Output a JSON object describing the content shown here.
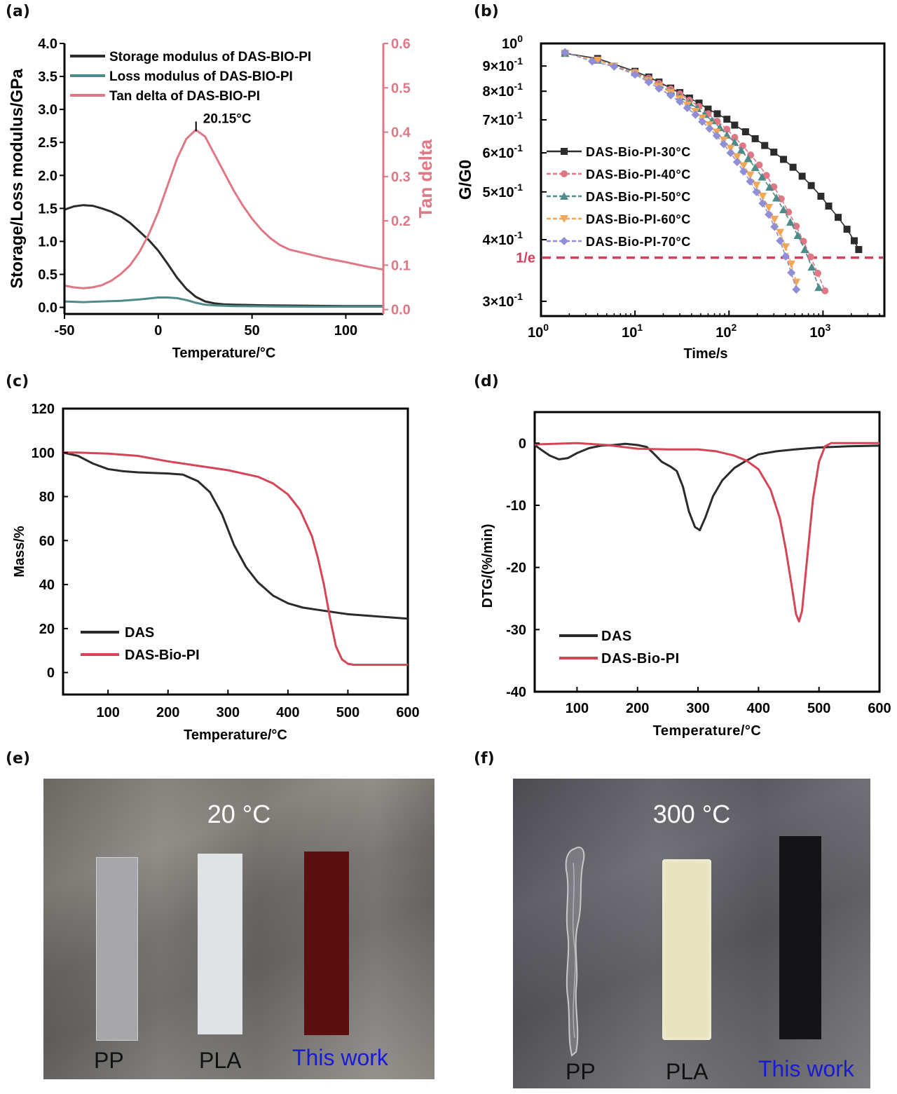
{
  "panels": {
    "a": {
      "label": "(a)"
    },
    "b": {
      "label": "(b)"
    },
    "c": {
      "label": "(c)"
    },
    "d": {
      "label": "(d)"
    },
    "e": {
      "label": "(e)"
    },
    "f": {
      "label": "(f)"
    }
  },
  "colors": {
    "black": "#2b2b2b",
    "teal": "#4f8a8b",
    "pink": "#e07785",
    "red": "#d64556",
    "orange": "#f0a858",
    "lavender": "#8f8fd8",
    "blue_text": "#1a1ad6"
  },
  "chart_data": [
    {
      "id": "a",
      "type": "line",
      "title": "",
      "xlabel": "Temperature/°C",
      "ylabel": "Storage/Loss modulus/GPa",
      "y2label": "Tan delta",
      "xlim": [
        -50,
        120
      ],
      "ylim": [
        -0.1,
        4.0
      ],
      "y2lim": [
        -0.01,
        0.6
      ],
      "xticks": [
        -50,
        0,
        50,
        100
      ],
      "yticks": [
        "0.0",
        "0.5",
        "1.0",
        "1.5",
        "2.0",
        "2.5",
        "3.0",
        "3.5",
        "4.0"
      ],
      "y2ticks": [
        "0.0",
        "0.1",
        "0.2",
        "0.3",
        "0.4",
        "0.5",
        "0.6"
      ],
      "legend_position": "top-left",
      "annotation": {
        "text": "20.15°C",
        "x": 20.15,
        "y2": 0.405
      },
      "series": [
        {
          "name": "Storage modulus of DAS-BIO-PI",
          "axis": "left",
          "color_key": "black",
          "x": [
            -50,
            -45,
            -40,
            -35,
            -30,
            -25,
            -20,
            -15,
            -10,
            -5,
            0,
            5,
            10,
            15,
            20,
            25,
            30,
            35,
            40,
            50,
            60,
            80,
            100,
            120
          ],
          "y": [
            1.48,
            1.53,
            1.55,
            1.54,
            1.5,
            1.45,
            1.38,
            1.28,
            1.15,
            1.02,
            0.86,
            0.66,
            0.45,
            0.28,
            0.16,
            0.09,
            0.06,
            0.045,
            0.04,
            0.035,
            0.03,
            0.025,
            0.02,
            0.02
          ]
        },
        {
          "name": "Loss modulus of DAS-BIO-PI",
          "axis": "left",
          "color_key": "teal",
          "x": [
            -50,
            -40,
            -30,
            -20,
            -10,
            0,
            5,
            10,
            15,
            20,
            25,
            30,
            40,
            60,
            80,
            100,
            120
          ],
          "y": [
            0.09,
            0.08,
            0.09,
            0.1,
            0.12,
            0.15,
            0.15,
            0.14,
            0.11,
            0.07,
            0.04,
            0.03,
            0.02,
            0.015,
            0.01,
            0.01,
            0.01
          ]
        },
        {
          "name": "Tan delta of DAS-BIO-PI",
          "axis": "right",
          "color_key": "pink",
          "x": [
            -50,
            -45,
            -40,
            -35,
            -30,
            -25,
            -20,
            -15,
            -10,
            -5,
            0,
            5,
            10,
            15,
            20,
            25,
            30,
            35,
            40,
            45,
            50,
            55,
            60,
            65,
            70,
            80,
            90,
            100,
            110,
            120
          ],
          "y": [
            0.054,
            0.05,
            0.048,
            0.05,
            0.055,
            0.065,
            0.08,
            0.1,
            0.13,
            0.17,
            0.22,
            0.28,
            0.34,
            0.385,
            0.405,
            0.39,
            0.35,
            0.31,
            0.27,
            0.235,
            0.205,
            0.18,
            0.16,
            0.145,
            0.135,
            0.125,
            0.115,
            0.107,
            0.098,
            0.09
          ]
        }
      ]
    },
    {
      "id": "b",
      "type": "line",
      "title": "",
      "xlabel": "Time/s",
      "ylabel": "G/G0",
      "xscale": "log",
      "yscale": "log",
      "xlim": [
        1,
        4500
      ],
      "ylim": [
        0.28,
        1.0
      ],
      "xticks": [
        {
          "v": 1,
          "base": "10",
          "exp": "0"
        },
        {
          "v": 10,
          "base": "10",
          "exp": "1"
        },
        {
          "v": 100,
          "base": "10",
          "exp": "2"
        },
        {
          "v": 1000,
          "base": "10",
          "exp": "3"
        }
      ],
      "yticks": [
        {
          "v": 1.0,
          "label": "10",
          "exp": "0"
        },
        {
          "v": 0.9,
          "label": "9×10",
          "exp": "-1"
        },
        {
          "v": 0.8,
          "label": "8×10",
          "exp": "-1"
        },
        {
          "v": 0.7,
          "label": "7×10",
          "exp": "-1"
        },
        {
          "v": 0.6,
          "label": "6×10",
          "exp": "-1"
        },
        {
          "v": 0.5,
          "label": "5×10",
          "exp": "-1"
        },
        {
          "v": 0.4,
          "label": "4×10",
          "exp": "-1"
        },
        {
          "v": 0.3,
          "label": "3×10",
          "exp": "-1"
        }
      ],
      "reference_line": {
        "label": "1/e",
        "y": 0.3679
      },
      "legend_position": "left",
      "series": [
        {
          "name": "DAS-Bio-PI-30°C",
          "marker": "square",
          "color_key": "black",
          "x": [
            1.8,
            4,
            10,
            14,
            18,
            24,
            30,
            38,
            48,
            60,
            75,
            95,
            115,
            150,
            190,
            240,
            300,
            380,
            480,
            600,
            750,
            950,
            1150,
            1450,
            1800,
            2150,
            2400
          ],
          "y": [
            0.955,
            0.932,
            0.878,
            0.855,
            0.835,
            0.812,
            0.795,
            0.775,
            0.757,
            0.736,
            0.72,
            0.702,
            0.683,
            0.662,
            0.641,
            0.621,
            0.602,
            0.582,
            0.561,
            0.538,
            0.515,
            0.49,
            0.468,
            0.444,
            0.42,
            0.398,
            0.382
          ]
        },
        {
          "name": "DAS-Bio-PI-40°C",
          "marker": "circle",
          "color_key": "pink",
          "x": [
            1.8,
            4,
            10,
            14,
            18,
            24,
            30,
            38,
            48,
            60,
            75,
            95,
            115,
            140,
            170,
            210,
            250,
            300,
            360,
            430,
            520,
            620,
            740,
            880,
            1050
          ],
          "y": [
            0.955,
            0.925,
            0.875,
            0.85,
            0.83,
            0.808,
            0.79,
            0.767,
            0.745,
            0.72,
            0.695,
            0.67,
            0.645,
            0.62,
            0.594,
            0.567,
            0.54,
            0.512,
            0.484,
            0.455,
            0.426,
            0.397,
            0.369,
            0.342,
            0.315
          ]
        },
        {
          "name": "DAS-Bio-PI-50°C",
          "marker": "triangle-up",
          "color_key": "teal",
          "x": [
            1.8,
            4,
            10,
            14,
            18,
            24,
            30,
            38,
            46,
            55,
            66,
            80,
            95,
            115,
            135,
            160,
            190,
            225,
            270,
            320,
            380,
            450,
            540,
            640,
            760,
            900
          ],
          "y": [
            0.955,
            0.925,
            0.873,
            0.845,
            0.822,
            0.8,
            0.78,
            0.758,
            0.738,
            0.718,
            0.697,
            0.675,
            0.652,
            0.63,
            0.607,
            0.584,
            0.56,
            0.536,
            0.511,
            0.486,
            0.46,
            0.434,
            0.408,
            0.382,
            0.352,
            0.32
          ]
        },
        {
          "name": "DAS-Bio-PI-60°C",
          "marker": "triangle-down",
          "color_key": "orange",
          "x": [
            1.8,
            4,
            6,
            10,
            14,
            18,
            24,
            30,
            36,
            44,
            52,
            62,
            74,
            88,
            104,
            122,
            143,
            168,
            196,
            228,
            265,
            305,
            350,
            400,
            460,
            520
          ],
          "y": [
            0.955,
            0.925,
            0.9,
            0.87,
            0.84,
            0.818,
            0.795,
            0.772,
            0.75,
            0.728,
            0.706,
            0.684,
            0.661,
            0.637,
            0.613,
            0.589,
            0.565,
            0.541,
            0.516,
            0.49,
            0.465,
            0.44,
            0.414,
            0.387,
            0.357,
            0.328
          ]
        },
        {
          "name": "DAS-Bio-PI-70°C",
          "marker": "diamond",
          "color_key": "lavender",
          "x": [
            1.8,
            3.5,
            6,
            10,
            14,
            18,
            24,
            30,
            36,
            44,
            52,
            62,
            74,
            88,
            104,
            122,
            143,
            168,
            196,
            228,
            265,
            305,
            350,
            400,
            460,
            520
          ],
          "y": [
            0.96,
            0.92,
            0.898,
            0.865,
            0.835,
            0.81,
            0.785,
            0.762,
            0.74,
            0.717,
            0.694,
            0.672,
            0.65,
            0.625,
            0.6,
            0.575,
            0.55,
            0.525,
            0.5,
            0.474,
            0.45,
            0.425,
            0.398,
            0.37,
            0.343,
            0.317
          ]
        }
      ]
    },
    {
      "id": "c",
      "type": "line",
      "title": "",
      "xlabel": "Temperature/°C",
      "ylabel": "Mass/%",
      "xlim": [
        25,
        600
      ],
      "ylim": [
        -10,
        120
      ],
      "xticks": [
        100,
        200,
        300,
        400,
        500,
        600
      ],
      "yticks": [
        0,
        20,
        40,
        60,
        80,
        100,
        120
      ],
      "legend_position": "bottom-left",
      "series": [
        {
          "name": "DAS",
          "color_key": "black",
          "x": [
            25,
            50,
            75,
            100,
            125,
            150,
            200,
            225,
            250,
            270,
            290,
            300,
            310,
            330,
            350,
            375,
            400,
            425,
            450,
            475,
            500,
            550,
            600
          ],
          "y": [
            100,
            98.5,
            95,
            92.5,
            91.5,
            91,
            90.5,
            90,
            87,
            82,
            72,
            65,
            58,
            48,
            41,
            35,
            31.5,
            29.5,
            28.5,
            27.5,
            26.5,
            25.5,
            24.5
          ]
        },
        {
          "name": "DAS-Bio-PI",
          "color_key": "red",
          "x": [
            25,
            50,
            100,
            150,
            200,
            250,
            300,
            350,
            375,
            400,
            420,
            440,
            450,
            460,
            470,
            480,
            490,
            500,
            510,
            550,
            600
          ],
          "y": [
            100,
            100,
            99.5,
            98.5,
            96,
            94,
            92,
            89,
            86,
            81,
            74,
            62,
            52,
            40,
            25,
            12,
            6,
            4,
            3.5,
            3.5,
            3.5
          ]
        }
      ]
    },
    {
      "id": "d",
      "type": "line",
      "title": "",
      "xlabel": "Temperature/°C",
      "ylabel": "DTG/(%/min)",
      "xlim": [
        30,
        600
      ],
      "ylim": [
        -40,
        5
      ],
      "xticks": [
        100,
        200,
        300,
        400,
        500,
        600
      ],
      "yticks": [
        0,
        -10,
        -20,
        -30,
        -40
      ],
      "legend_position": "bottom-left",
      "series": [
        {
          "name": "DAS",
          "color_key": "black",
          "x": [
            30,
            40,
            55,
            70,
            85,
            100,
            120,
            140,
            160,
            180,
            200,
            215,
            225,
            240,
            255,
            265,
            275,
            285,
            295,
            303,
            312,
            325,
            340,
            360,
            380,
            400,
            430,
            460,
            500,
            550,
            600
          ],
          "y": [
            -0.3,
            -1,
            -2,
            -2.6,
            -2.4,
            -1.6,
            -0.8,
            -0.4,
            -0.3,
            -0.1,
            -0.3,
            -0.6,
            -1.5,
            -3,
            -3.8,
            -4.5,
            -7,
            -11,
            -13.5,
            -14,
            -12,
            -8.5,
            -6,
            -4,
            -2.8,
            -1.8,
            -1.3,
            -1,
            -0.7,
            -0.5,
            -0.4
          ]
        },
        {
          "name": "DAS-Bio-PI",
          "color_key": "red",
          "x": [
            30,
            100,
            150,
            200,
            250,
            300,
            330,
            360,
            380,
            400,
            420,
            435,
            445,
            455,
            462,
            467,
            472,
            480,
            490,
            500,
            510,
            520,
            560,
            600
          ],
          "y": [
            -0.2,
            0,
            -0.3,
            -0.9,
            -1,
            -1,
            -1.3,
            -2,
            -2.8,
            -4.2,
            -7.5,
            -12,
            -17,
            -23,
            -27.5,
            -28.7,
            -27,
            -19,
            -9,
            -3,
            -0.5,
            0,
            0,
            0
          ]
        }
      ]
    }
  ],
  "photos": {
    "e": {
      "temperature_label": "20 °C",
      "samples": [
        {
          "name": "PP",
          "label_color_key": "black"
        },
        {
          "name": "PLA",
          "label_color_key": "black"
        },
        {
          "name": "This work",
          "label_color_key": "blue_text"
        }
      ]
    },
    "f": {
      "temperature_label": "300 °C",
      "samples": [
        {
          "name": "PP",
          "label_color_key": "black"
        },
        {
          "name": "PLA",
          "label_color_key": "black"
        },
        {
          "name": "This work",
          "label_color_key": "blue_text"
        }
      ]
    }
  }
}
